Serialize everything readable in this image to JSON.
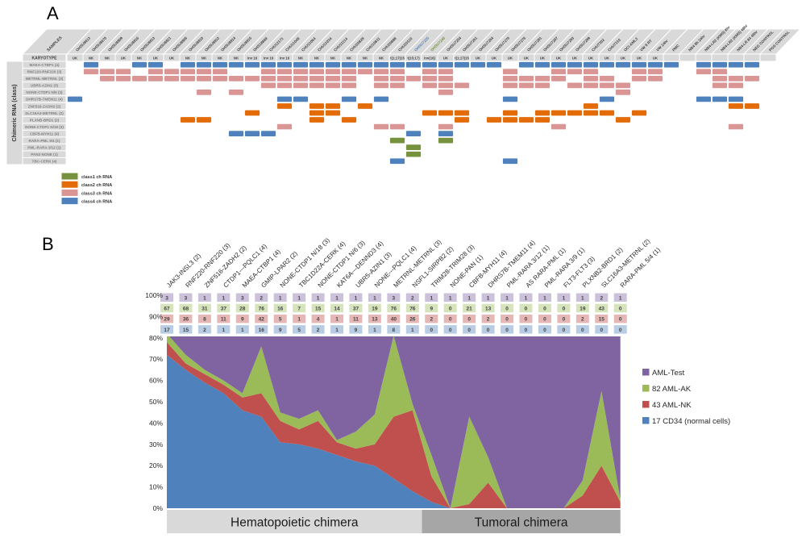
{
  "panel_a": {
    "label": "A",
    "samples_header": "SAMPLES",
    "karyotype_header": "KARYOTYPE",
    "side_label": "Chimeric RNA (class)",
    "class_colors": {
      "1": "#76923C",
      "2": "#E36C09",
      "3": "#D99694",
      "4": "#4F81BD"
    },
    "legend": [
      {
        "label": "class1 ch RNA",
        "class": "1"
      },
      {
        "label": "class2 ch RNA",
        "class": "2"
      },
      {
        "label": "class3 ch RNA",
        "class": "3"
      },
      {
        "label": "class4 ch RNA",
        "class": "4"
      }
    ],
    "samples": [
      {
        "name": "OHSU8613",
        "karyotype": "UK"
      },
      {
        "name": "OHSU8670",
        "karyotype": "NK"
      },
      {
        "name": "OHSU8809",
        "karyotype": "NK"
      },
      {
        "name": "OHSU8816",
        "karyotype": "UK"
      },
      {
        "name": "OHSU8813",
        "karyotype": "NK"
      },
      {
        "name": "OHSU8821",
        "karyotype": "UK"
      },
      {
        "name": "OHSU8805",
        "karyotype": "UK"
      },
      {
        "name": "OHSU8810",
        "karyotype": "NK"
      },
      {
        "name": "OHSU8812",
        "karyotype": "NK"
      },
      {
        "name": "OHSU8814",
        "karyotype": "NK"
      },
      {
        "name": "OHSU8815",
        "karyotype": "NK"
      },
      {
        "name": "OHS18869",
        "karyotype": "inv 16"
      },
      {
        "name": "CHU12171",
        "karyotype": "inv 16"
      },
      {
        "name": "CHU11048",
        "karyotype": "inv 16"
      },
      {
        "name": "CHU11064",
        "karyotype": "NK"
      },
      {
        "name": "CHU11034",
        "karyotype": "NK"
      },
      {
        "name": "CHU11114",
        "karyotype": "NK"
      },
      {
        "name": "CHU20829",
        "karyotype": "NK"
      },
      {
        "name": "CHU10811",
        "karyotype": "NK"
      },
      {
        "name": "CHU20888",
        "karyotype": "NK"
      },
      {
        "name": "CHU20110",
        "karyotype": "t(1;17)15"
      },
      {
        "name": "OHSU7225",
        "karyotype": "t(15;17)",
        "color": "#4F81BD"
      },
      {
        "name": "OHSU7245",
        "karyotype": "inv(16)",
        "color": "#76923C"
      },
      {
        "name": "OHSU7254",
        "karyotype": "UK"
      },
      {
        "name": "OHSU7261",
        "karyotype": "t(1;17)15"
      },
      {
        "name": "OHSU7264",
        "karyotype": "UK"
      },
      {
        "name": "OHSU7270",
        "karyotype": "UK"
      },
      {
        "name": "OHSU7276",
        "karyotype": "UK"
      },
      {
        "name": "OHSU7281",
        "karyotype": "UK"
      },
      {
        "name": "OHSU7287",
        "karyotype": "UK"
      },
      {
        "name": "OHSU7293",
        "karyotype": "UK"
      },
      {
        "name": "OHSU7299",
        "karyotype": "UK"
      },
      {
        "name": "CHU7302",
        "karyotype": "UK"
      },
      {
        "name": "CHU7310",
        "karyotype": "UK"
      },
      {
        "name": "OCI-AML3",
        "karyotype": "UK"
      },
      {
        "name": "VW 8 RT",
        "karyotype": "UK"
      },
      {
        "name": "VW 24hr",
        "karyotype": "UK"
      },
      {
        "name": "PMC",
        "karyotype": ""
      },
      {
        "name": "NB4 8h 24hr",
        "karyotype": ""
      },
      {
        "name": "NB4-LR2 (KMS) 8hr",
        "karyotype": ""
      },
      {
        "name": "NB4-LR2 (KMS) 48hr",
        "karyotype": ""
      },
      {
        "name": "NB4-LR 84 48hr",
        "karyotype": ""
      },
      {
        "name": "NEG CONTROL",
        "karyotype": ""
      },
      {
        "name": "POS CONTROL",
        "karyotype": ""
      }
    ],
    "rows": [
      {
        "label": "MAEA-CTBP1 (4)",
        "class": "4",
        "cols": [
          2,
          5,
          6,
          8,
          9,
          10,
          11,
          12,
          13,
          14,
          15,
          16,
          17,
          18,
          19,
          20,
          21,
          22,
          23,
          24,
          25,
          26,
          27,
          29,
          30,
          31,
          32,
          33,
          34,
          35,
          36,
          37,
          38,
          40,
          41,
          42,
          43
        ]
      },
      {
        "label": "RNF220-RNF220 (3)",
        "class": "3",
        "cols": [
          2,
          3,
          4,
          6,
          7,
          8,
          9,
          10,
          13,
          14,
          15,
          16,
          17,
          18,
          19,
          20,
          21,
          23,
          24,
          28,
          31,
          32,
          33,
          36,
          37,
          40,
          41
        ]
      },
      {
        "label": "METRNL-METRNL (3)",
        "class": "3",
        "cols": [
          3,
          4,
          5,
          6,
          7,
          8,
          9,
          10,
          11,
          12,
          13,
          14,
          15,
          16,
          17,
          18,
          20,
          21,
          22,
          23,
          24,
          28,
          29,
          30,
          31,
          33,
          34,
          36,
          37,
          41,
          42,
          43
        ]
      },
      {
        "label": "UBR5-AZIN1 (3)",
        "class": "3",
        "cols": [
          13,
          14,
          15,
          16,
          17,
          18,
          20,
          21,
          23,
          24,
          25,
          28,
          29,
          30,
          32,
          33,
          34,
          35,
          41,
          42
        ]
      },
      {
        "label": "NONE-CTDP1 N/6 (3)",
        "class": "3",
        "cols": [
          9,
          11,
          24,
          35
        ]
      },
      {
        "label": "DHRS7B-TMEM11 (4)",
        "class": "4",
        "cols": [
          1,
          14,
          15,
          18,
          20,
          28,
          34,
          40,
          41,
          42
        ]
      },
      {
        "label": "ZNF516-ZADH2 (2)",
        "class": "2",
        "cols": [
          14,
          16,
          17,
          19,
          33,
          42,
          43
        ]
      },
      {
        "label": "SLC16A3-METRNL (2)",
        "class": "2",
        "cols": [
          12,
          16,
          17,
          23,
          24,
          25,
          28,
          30,
          31,
          32,
          33,
          34,
          36
        ]
      },
      {
        "label": "PLXNB-BRD1 (2)",
        "class": "2",
        "cols": [
          8,
          9,
          16,
          18,
          25,
          27,
          28,
          29,
          30,
          35
        ]
      },
      {
        "label": "NONE-CTDP1 N/18 (3)",
        "class": "3",
        "cols": [
          14,
          20,
          21,
          24,
          31,
          42
        ]
      },
      {
        "label": "CBFB-MYH11 (4)",
        "class": "4",
        "cols": [
          11,
          12,
          13,
          22,
          24
        ]
      },
      {
        "label": "RARA-PML 5/4  (1)",
        "class": "1",
        "cols": [
          21,
          24
        ]
      },
      {
        "label": "PML-RARA 3/12  (1)",
        "class": "1",
        "cols": [
          22
        ]
      },
      {
        "label": "PAN3-NONE (1)",
        "class": "1",
        "cols": [
          22
        ]
      },
      {
        "label": "TBC-CERK (4)",
        "class": "4",
        "cols": [
          21,
          28
        ]
      }
    ]
  },
  "panel_b": {
    "label": "B",
    "groups": [
      {
        "label": "Hematopoietic chimera",
        "from": 1,
        "to": 14,
        "color": "#D9D9D9"
      },
      {
        "label": "Tumoral chimera",
        "from": 15,
        "to": 25,
        "color": "#A6A6A6"
      }
    ],
    "legend": [
      {
        "label": "AML-Test",
        "color": "#8064A2"
      },
      {
        "label": "82 AML-AK",
        "color": "#9BBB59"
      },
      {
        "label": "43 AML-NK",
        "color": "#C0504D"
      },
      {
        "label": "17 CD34 (normal cells)",
        "color": "#4F81BD"
      }
    ],
    "counts": {
      "row_styles": [
        {
          "name": "AML-Test",
          "bg": "#CCC1DA"
        },
        {
          "name": "AML-AK",
          "bg": "#D6E4BC"
        },
        {
          "name": "AML-NK",
          "bg": "#E5B8B7"
        },
        {
          "name": "CD34",
          "bg": "#B8CCE4"
        }
      ],
      "values": [
        [
          3,
          3,
          1,
          1,
          3,
          2,
          1,
          1,
          1,
          1,
          1,
          1,
          3,
          2,
          1,
          1,
          1,
          1,
          1,
          1,
          1,
          1,
          1,
          2,
          1
        ],
        [
          67,
          68,
          31,
          37,
          28,
          76,
          16,
          7,
          15,
          14,
          37,
          19,
          76,
          76,
          9,
          0,
          21,
          13,
          0,
          0,
          0,
          0,
          19,
          43,
          0
        ],
        [
          29,
          36,
          8,
          11,
          9,
          42,
          5,
          1,
          4,
          1,
          11,
          13,
          40,
          26,
          2,
          0,
          0,
          2,
          0,
          0,
          0,
          0,
          2,
          15,
          0
        ],
        [
          17,
          15,
          2,
          1,
          1,
          16,
          9,
          5,
          2,
          1,
          9,
          1,
          8,
          1,
          0,
          0,
          0,
          0,
          0,
          0,
          0,
          0,
          0,
          0,
          0
        ]
      ]
    }
  },
  "chart_data": {
    "type": "area",
    "stacked": "percent",
    "title": "",
    "xlabel": "",
    "ylabel": "",
    "ylim": [
      0,
      100
    ],
    "grid": false,
    "legend_position": "right",
    "y_ticks": [
      "100%",
      "90%",
      "80%",
      "70%",
      "60%",
      "50%",
      "40%",
      "30%",
      "20%",
      "10%",
      "0%"
    ],
    "categories": [
      "JAK3-INSL3 (2)",
      "RNF220-RNF220 (3)",
      "ZNF516-ZADH2 (2)",
      "CTDP1---PQLC1 (4)",
      "MAEA-CTBP1 (4)",
      "GMIP-LPAR2 (2)",
      "NONE-CTDP1 N/18 (3)",
      "TBC1D22A-CERK (4)",
      "NONE-CTDP1 N/6 (3)",
      "KAT6A---DENND3 (4)",
      "UBR5-AZIN1 (3)",
      "NONE---PQLC1 (4)",
      "METRNL-METRNL (3)",
      "NSFL1-SIRPB2 (2)",
      "TRIM28-TRIM28 (3)",
      "NONE-PAN (1)",
      "CBFB-MYH11 (4)",
      "DHRS7B-TMEM11 (4)",
      "PML-RARA 3/12 (1)",
      "AS RARA-PML (1)",
      "PML-RARA 3/9 (1)",
      "FLT3-FLT3 (3)",
      "PLXNB2-BRD1 (2)",
      "SLC16A3-METRNL (2)",
      "RARA-PML 5/4 (1)"
    ],
    "series": [
      {
        "name": "17 CD34 (normal cells)",
        "color": "#4F81BD",
        "values": [
          72,
          65,
          59,
          54,
          46,
          43,
          31,
          30,
          28,
          25,
          22,
          20,
          14,
          8,
          3,
          0,
          0,
          0,
          0,
          0,
          0,
          0,
          0,
          0,
          0
        ]
      },
      {
        "name": "43 AML-NK",
        "color": "#C0504D",
        "values": [
          6,
          3,
          4,
          4,
          6,
          11,
          10,
          7,
          13,
          6,
          6,
          10,
          29,
          38,
          12,
          0,
          2,
          12,
          0,
          0,
          0,
          0,
          6,
          20,
          3
        ]
      },
      {
        "name": "82 AML-AK",
        "color": "#9BBB59",
        "values": [
          4,
          4,
          2,
          2,
          2,
          22,
          4,
          5,
          5,
          1,
          8,
          14,
          38,
          3,
          10,
          0,
          41,
          12,
          0,
          0,
          0,
          0,
          7,
          35,
          1
        ]
      },
      {
        "name": "AML-Test",
        "color": "#8064A2",
        "values": [
          18,
          28,
          35,
          40,
          46,
          24,
          55,
          58,
          54,
          68,
          64,
          56,
          19,
          51,
          75,
          100,
          57,
          76,
          100,
          100,
          100,
          100,
          87,
          45,
          96
        ]
      }
    ],
    "x_axis_groups": [
      "Hematopoietic chimera",
      "Tumoral chimera"
    ]
  }
}
